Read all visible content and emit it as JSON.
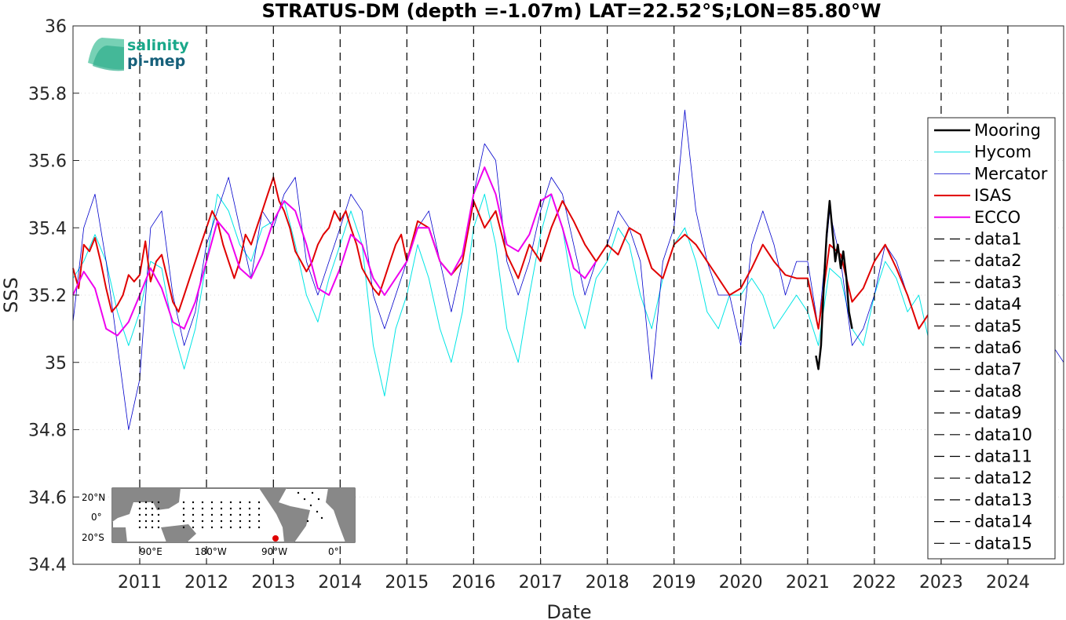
{
  "chart_data": {
    "type": "line",
    "title": "STRATUS-DM (depth =-1.07m) LAT=22.52°S;LON=85.80°W",
    "xlabel": "Date",
    "ylabel": "SSS",
    "xlim": [
      "2010-01-01",
      "2024-11-01"
    ],
    "ylim": [
      34.4,
      36
    ],
    "x_ticks": [
      "2011",
      "2012",
      "2013",
      "2014",
      "2015",
      "2016",
      "2017",
      "2018",
      "2019",
      "2020",
      "2021",
      "2022",
      "2023",
      "2024"
    ],
    "y_ticks": [
      "34.4",
      "34.6",
      "34.8",
      "35",
      "35.2",
      "35.4",
      "35.6",
      "35.8",
      "36"
    ],
    "grid": true,
    "legend_position": "right",
    "series": [
      {
        "name": "Mooring",
        "color": "#000000",
        "width": 2.5,
        "x": [
          "2021-02-15",
          "2021-03-01",
          "2021-03-15",
          "2021-04-01",
          "2021-04-15",
          "2021-05-01",
          "2021-05-15",
          "2021-06-01",
          "2021-06-15",
          "2021-07-01",
          "2021-07-15",
          "2021-08-01",
          "2021-08-15",
          "2021-09-01"
        ],
        "y": [
          35.02,
          34.98,
          35.05,
          35.25,
          35.38,
          35.48,
          35.4,
          35.3,
          35.35,
          35.28,
          35.33,
          35.25,
          35.15,
          35.1
        ]
      },
      {
        "name": "Hycom",
        "color": "#00e5e5",
        "width": 1,
        "x": [
          "2010-01-01",
          "2010-03-01",
          "2010-05-01",
          "2010-07-01",
          "2010-09-01",
          "2010-11-01",
          "2011-01-01",
          "2011-03-01",
          "2011-05-01",
          "2011-07-01",
          "2011-09-01",
          "2011-11-01",
          "2012-01-01",
          "2012-03-01",
          "2012-05-01",
          "2012-07-01",
          "2012-09-01",
          "2012-11-01",
          "2013-01-01",
          "2013-03-01",
          "2013-05-01",
          "2013-07-01",
          "2013-09-01",
          "2013-11-01",
          "2014-01-01",
          "2014-03-01",
          "2014-05-01",
          "2014-07-01",
          "2014-09-01",
          "2014-11-01",
          "2015-01-01",
          "2015-03-01",
          "2015-05-01",
          "2015-07-01",
          "2015-09-01",
          "2015-11-01",
          "2016-01-01",
          "2016-03-01",
          "2016-05-01",
          "2016-07-01",
          "2016-09-01",
          "2016-11-01",
          "2017-01-01",
          "2017-03-01",
          "2017-05-01",
          "2017-07-01",
          "2017-09-01",
          "2017-11-01",
          "2018-01-01",
          "2018-03-01",
          "2018-05-01",
          "2018-07-01",
          "2018-09-01",
          "2018-11-01",
          "2019-01-01",
          "2019-03-01",
          "2019-05-01",
          "2019-07-01",
          "2019-09-01",
          "2019-11-01",
          "2020-01-01",
          "2020-03-01",
          "2020-05-01",
          "2020-07-01",
          "2020-09-01",
          "2020-11-01",
          "2021-01-01",
          "2021-03-01",
          "2021-05-01",
          "2021-07-01",
          "2021-09-01",
          "2021-11-01",
          "2022-01-01",
          "2022-03-01",
          "2022-05-01",
          "2022-07-01",
          "2022-09-01",
          "2022-11-01"
        ],
        "y": [
          35.25,
          35.3,
          35.38,
          35.3,
          35.15,
          35.05,
          35.15,
          35.3,
          35.28,
          35.1,
          34.98,
          35.1,
          35.3,
          35.5,
          35.45,
          35.35,
          35.3,
          35.4,
          35.42,
          35.48,
          35.35,
          35.2,
          35.12,
          35.25,
          35.35,
          35.45,
          35.35,
          35.05,
          34.9,
          35.1,
          35.2,
          35.35,
          35.25,
          35.1,
          35.0,
          35.15,
          35.4,
          35.5,
          35.35,
          35.1,
          35.0,
          35.2,
          35.38,
          35.5,
          35.4,
          35.2,
          35.1,
          35.25,
          35.3,
          35.4,
          35.35,
          35.2,
          35.1,
          35.25,
          35.35,
          35.4,
          35.3,
          35.15,
          35.1,
          35.2,
          35.2,
          35.25,
          35.2,
          35.1,
          35.15,
          35.2,
          35.15,
          35.05,
          35.28,
          35.25,
          35.1,
          35.05,
          35.2,
          35.3,
          35.25,
          35.15,
          35.2,
          35.05
        ]
      },
      {
        "name": "Mercator",
        "color": "#0000cc",
        "width": 0.8,
        "x": [
          "2010-01-01",
          "2010-03-01",
          "2010-05-01",
          "2010-07-01",
          "2010-09-01",
          "2010-11-01",
          "2011-01-01",
          "2011-03-01",
          "2011-05-01",
          "2011-07-01",
          "2011-09-01",
          "2011-11-01",
          "2012-01-01",
          "2012-03-01",
          "2012-05-01",
          "2012-07-01",
          "2012-09-01",
          "2012-11-01",
          "2013-01-01",
          "2013-03-01",
          "2013-05-01",
          "2013-07-01",
          "2013-09-01",
          "2013-11-01",
          "2014-01-01",
          "2014-03-01",
          "2014-05-01",
          "2014-07-01",
          "2014-09-01",
          "2014-11-01",
          "2015-01-01",
          "2015-03-01",
          "2015-05-01",
          "2015-07-01",
          "2015-09-01",
          "2015-11-01",
          "2016-01-01",
          "2016-03-01",
          "2016-05-01",
          "2016-07-01",
          "2016-09-01",
          "2016-11-01",
          "2017-01-01",
          "2017-03-01",
          "2017-05-01",
          "2017-07-01",
          "2017-09-01",
          "2017-11-01",
          "2018-01-01",
          "2018-03-01",
          "2018-05-01",
          "2018-07-01",
          "2018-09-01",
          "2018-11-01",
          "2019-01-01",
          "2019-03-01",
          "2019-05-01",
          "2019-07-01",
          "2019-09-01",
          "2019-11-01",
          "2020-01-01",
          "2020-03-01",
          "2020-05-01",
          "2020-07-01",
          "2020-09-01",
          "2020-11-01",
          "2021-01-01",
          "2021-03-01",
          "2021-05-01",
          "2021-07-01",
          "2021-09-01",
          "2021-11-01",
          "2022-01-01",
          "2022-03-01",
          "2022-05-01",
          "2022-07-01",
          "2022-09-01",
          "2022-11-01",
          "2023-01-01",
          "2023-03-01",
          "2023-05-01",
          "2023-07-01",
          "2023-09-01",
          "2023-11-01",
          "2024-01-01",
          "2024-03-01",
          "2024-05-01",
          "2024-07-01",
          "2024-09-01",
          "2024-11-01"
        ],
        "y": [
          35.12,
          35.4,
          35.5,
          35.3,
          35.05,
          34.8,
          34.95,
          35.4,
          35.45,
          35.2,
          35.05,
          35.15,
          35.35,
          35.45,
          35.55,
          35.4,
          35.25,
          35.45,
          35.4,
          35.5,
          35.55,
          35.3,
          35.2,
          35.3,
          35.4,
          35.5,
          35.45,
          35.2,
          35.1,
          35.2,
          35.3,
          35.4,
          35.45,
          35.3,
          35.15,
          35.3,
          35.5,
          35.65,
          35.6,
          35.3,
          35.2,
          35.3,
          35.45,
          35.55,
          35.5,
          35.35,
          35.2,
          35.3,
          35.35,
          35.45,
          35.4,
          35.3,
          34.95,
          35.3,
          35.4,
          35.75,
          35.45,
          35.3,
          35.2,
          35.2,
          35.05,
          35.35,
          35.45,
          35.35,
          35.2,
          35.3,
          35.3,
          35.1,
          35.45,
          35.3,
          35.05,
          35.1,
          35.2,
          35.35,
          35.3,
          35.2,
          35.1,
          35.15,
          35.2,
          35.3,
          35.35,
          35.25,
          35.15,
          35.2,
          35.4,
          35.5,
          35.3,
          35.2,
          35.05,
          35.0
        ]
      },
      {
        "name": "ISAS",
        "color": "#e00000",
        "width": 2,
        "x": [
          "2010-01-01",
          "2010-02-01",
          "2010-03-01",
          "2010-04-01",
          "2010-05-01",
          "2010-06-01",
          "2010-07-01",
          "2010-08-01",
          "2010-09-01",
          "2010-10-01",
          "2010-11-01",
          "2010-12-01",
          "2011-01-01",
          "2011-02-01",
          "2011-03-01",
          "2011-04-01",
          "2011-05-01",
          "2011-06-01",
          "2011-07-01",
          "2011-08-01",
          "2011-09-01",
          "2011-10-01",
          "2011-11-01",
          "2011-12-01",
          "2012-01-01",
          "2012-02-01",
          "2012-03-01",
          "2012-04-01",
          "2012-05-01",
          "2012-06-01",
          "2012-07-01",
          "2012-08-01",
          "2012-09-01",
          "2012-10-01",
          "2012-11-01",
          "2012-12-01",
          "2013-01-01",
          "2013-02-01",
          "2013-03-01",
          "2013-04-01",
          "2013-05-01",
          "2013-06-01",
          "2013-07-01",
          "2013-08-01",
          "2013-09-01",
          "2013-10-01",
          "2013-11-01",
          "2013-12-01",
          "2014-01-01",
          "2014-02-01",
          "2014-03-01",
          "2014-04-01",
          "2014-05-01",
          "2014-06-01",
          "2014-07-01",
          "2014-08-01",
          "2014-09-01",
          "2014-10-01",
          "2014-11-01",
          "2014-12-01",
          "2015-01-01",
          "2015-03-01",
          "2015-05-01",
          "2015-07-01",
          "2015-09-01",
          "2015-11-01",
          "2016-01-01",
          "2016-03-01",
          "2016-05-01",
          "2016-07-01",
          "2016-09-01",
          "2016-11-01",
          "2017-01-01",
          "2017-03-01",
          "2017-05-01",
          "2017-07-01",
          "2017-09-01",
          "2017-11-01",
          "2018-01-01",
          "2018-03-01",
          "2018-05-01",
          "2018-07-01",
          "2018-09-01",
          "2018-11-01",
          "2019-01-01",
          "2019-03-01",
          "2019-05-01",
          "2019-07-01",
          "2019-09-01",
          "2019-11-01",
          "2020-01-01",
          "2020-03-01",
          "2020-05-01",
          "2020-07-01",
          "2020-09-01",
          "2020-11-01",
          "2021-01-01",
          "2021-03-01",
          "2021-05-01",
          "2021-07-01",
          "2021-09-01",
          "2021-11-01",
          "2022-01-01",
          "2022-03-01",
          "2022-05-01",
          "2022-07-01",
          "2022-09-01",
          "2022-11-01"
        ],
        "y": [
          35.28,
          35.22,
          35.35,
          35.33,
          35.37,
          35.3,
          35.22,
          35.15,
          35.17,
          35.2,
          35.26,
          35.24,
          35.26,
          35.36,
          35.24,
          35.3,
          35.32,
          35.25,
          35.18,
          35.15,
          35.2,
          35.25,
          35.3,
          35.35,
          35.4,
          35.45,
          35.42,
          35.35,
          35.3,
          35.25,
          35.3,
          35.38,
          35.35,
          35.4,
          35.45,
          35.5,
          35.55,
          35.48,
          35.45,
          35.4,
          35.33,
          35.3,
          35.27,
          35.3,
          35.35,
          35.38,
          35.4,
          35.45,
          35.42,
          35.45,
          35.4,
          35.35,
          35.28,
          35.25,
          35.22,
          35.2,
          35.25,
          35.3,
          35.35,
          35.38,
          35.3,
          35.42,
          35.4,
          35.3,
          35.26,
          35.3,
          35.48,
          35.4,
          35.45,
          35.32,
          35.25,
          35.35,
          35.3,
          35.4,
          35.48,
          35.42,
          35.35,
          35.3,
          35.35,
          35.32,
          35.4,
          35.38,
          35.28,
          35.25,
          35.35,
          35.38,
          35.35,
          35.3,
          35.25,
          35.2,
          35.22,
          35.28,
          35.35,
          35.3,
          35.26,
          35.25,
          35.25,
          35.1,
          35.35,
          35.32,
          35.18,
          35.22,
          35.3,
          35.35,
          35.28,
          35.2,
          35.1,
          35.15
        ]
      },
      {
        "name": "ECCO",
        "color": "#ee00ee",
        "width": 2,
        "x": [
          "2010-01-01",
          "2010-03-01",
          "2010-05-01",
          "2010-07-01",
          "2010-09-01",
          "2010-11-01",
          "2011-01-01",
          "2011-03-01",
          "2011-05-01",
          "2011-07-01",
          "2011-09-01",
          "2011-11-01",
          "2012-01-01",
          "2012-03-01",
          "2012-05-01",
          "2012-07-01",
          "2012-09-01",
          "2012-11-01",
          "2013-01-01",
          "2013-03-01",
          "2013-05-01",
          "2013-07-01",
          "2013-09-01",
          "2013-11-01",
          "2014-01-01",
          "2014-03-01",
          "2014-05-01",
          "2014-07-01",
          "2014-09-01",
          "2014-11-01",
          "2015-01-01",
          "2015-03-01",
          "2015-05-01",
          "2015-07-01",
          "2015-09-01",
          "2015-11-01",
          "2016-01-01",
          "2016-03-01",
          "2016-05-01",
          "2016-07-01",
          "2016-09-01",
          "2016-11-01",
          "2017-01-01",
          "2017-03-01",
          "2017-05-01",
          "2017-07-01",
          "2017-09-01",
          "2017-11-01"
        ],
        "y": [
          35.2,
          35.27,
          35.22,
          35.1,
          35.08,
          35.12,
          35.2,
          35.28,
          35.22,
          35.12,
          35.1,
          35.18,
          35.3,
          35.42,
          35.38,
          35.28,
          35.25,
          35.32,
          35.42,
          35.48,
          35.45,
          35.35,
          35.22,
          35.2,
          35.28,
          35.38,
          35.35,
          35.25,
          35.2,
          35.25,
          35.3,
          35.4,
          35.4,
          35.3,
          35.26,
          35.32,
          35.5,
          35.58,
          35.5,
          35.35,
          35.33,
          35.38,
          35.48,
          35.5,
          35.4,
          35.28,
          35.25,
          35.3
        ]
      },
      {
        "name": "data1",
        "color": "#000000",
        "year": "2011"
      },
      {
        "name": "data2",
        "color": "#000000",
        "year": "2012"
      },
      {
        "name": "data3",
        "color": "#000000",
        "year": "2013"
      },
      {
        "name": "data4",
        "color": "#000000",
        "year": "2014"
      },
      {
        "name": "data5",
        "color": "#000000",
        "year": "2015"
      },
      {
        "name": "data6",
        "color": "#000000",
        "year": "2016"
      },
      {
        "name": "data7",
        "color": "#000000",
        "year": "2017"
      },
      {
        "name": "data8",
        "color": "#000000",
        "year": "2018"
      },
      {
        "name": "data9",
        "color": "#000000",
        "year": "2019"
      },
      {
        "name": "data10",
        "color": "#000000",
        "year": "2020"
      },
      {
        "name": "data11",
        "color": "#000000",
        "year": "2021"
      },
      {
        "name": "data12",
        "color": "#000000",
        "year": "2022"
      },
      {
        "name": "data13",
        "color": "#000000",
        "year": "2023"
      },
      {
        "name": "data14",
        "color": "#000000",
        "year": "2024"
      },
      {
        "name": "data15",
        "color": "#000000",
        "year": ""
      }
    ]
  },
  "logo": {
    "line1": "salinity",
    "line2": "pi-mep",
    "color": "#1aa88a"
  },
  "inset_map": {
    "lat_labels": [
      "20°N",
      "0°",
      "20°S"
    ],
    "lon_labels": [
      "90°E",
      "180°W",
      "90°W",
      "0°"
    ],
    "marker_color": "#e00000",
    "land_color": "#888888"
  }
}
